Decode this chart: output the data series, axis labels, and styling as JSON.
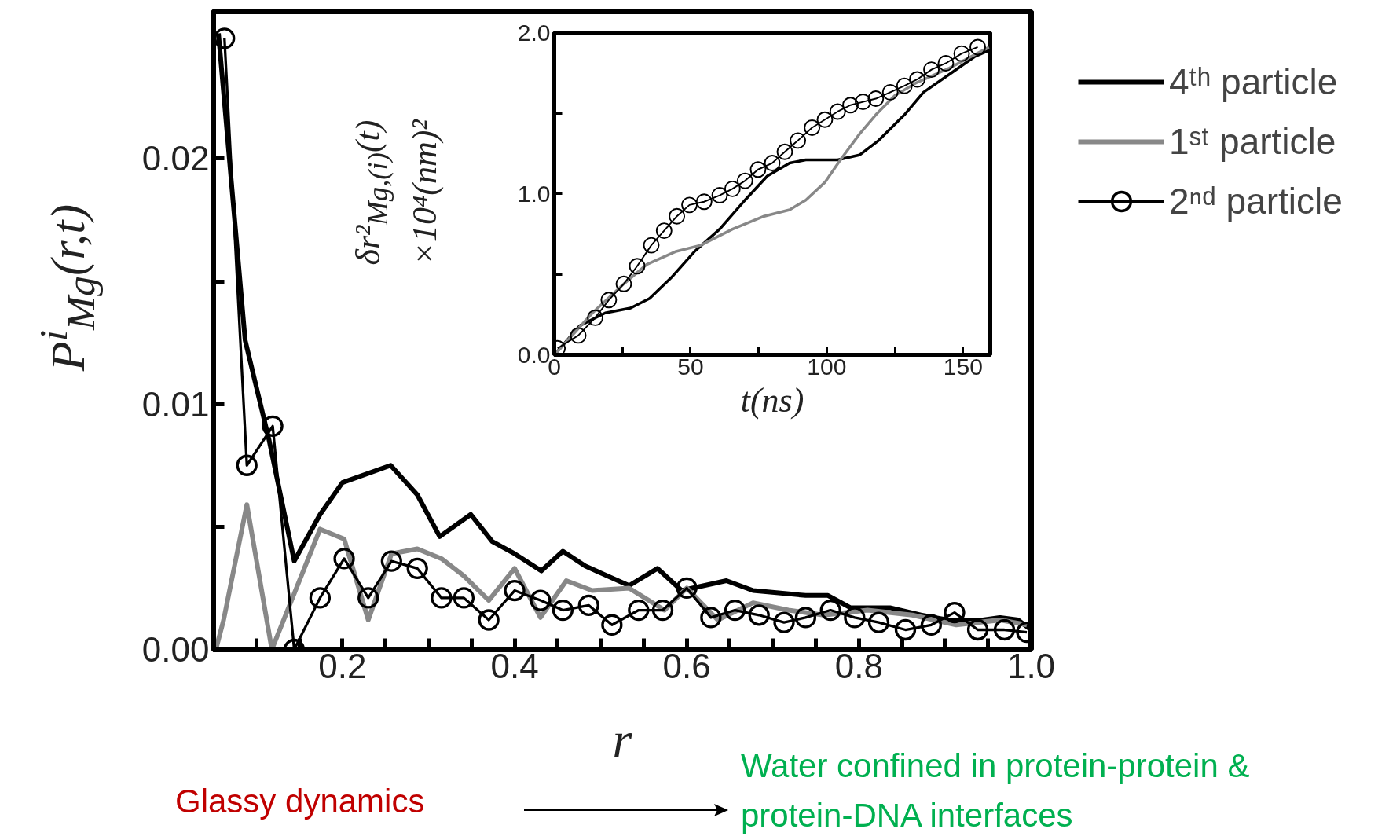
{
  "chart_data": [
    {
      "type": "line",
      "xlabel": "r",
      "ylabel": "P$^{i}$$_{Mg}$(r,t)",
      "xlim": [
        0.05,
        1.0
      ],
      "ylim": [
        0,
        0.026
      ],
      "xticks": [
        {
          "value": 0.1,
          "label": null
        },
        {
          "value": 0.15,
          "label": null
        },
        0.2,
        {
          "value": 0.25,
          "label": null
        },
        {
          "value": 0.3,
          "label": null
        },
        {
          "value": 0.35,
          "label": null
        },
        0.4,
        {
          "value": 0.45,
          "label": null
        },
        {
          "value": 0.5,
          "label": null
        },
        {
          "value": 0.55,
          "label": null
        },
        0.6,
        {
          "value": 0.65,
          "label": null
        },
        {
          "value": 0.7,
          "label": null
        },
        {
          "value": 0.75,
          "label": null
        },
        0.8,
        {
          "value": 0.85,
          "label": null
        },
        {
          "value": 0.9,
          "label": null
        },
        {
          "value": 0.95,
          "label": null
        },
        {
          "value": 1.0,
          "label": "1.0"
        }
      ],
      "yticks": [
        {
          "value": 0,
          "label": "0.00"
        },
        {
          "value": 0.005,
          "label": null
        },
        0.01,
        {
          "value": 0.015,
          "label": null
        },
        {
          "value": 0.02,
          "label": "0.02"
        }
      ],
      "grid": false,
      "legend": "right",
      "series": [
        {
          "name": "4ᵗʰ particle",
          "color": "#000000",
          "marker": "none",
          "x": [
            0.056,
            0.087,
            0.115,
            0.144,
            0.174,
            0.2,
            0.256,
            0.287,
            0.313,
            0.349,
            0.374,
            0.4,
            0.431,
            0.456,
            0.482,
            0.533,
            0.566,
            0.594,
            0.646,
            0.677,
            0.738,
            0.764,
            0.79,
            0.836,
            0.872,
            0.903,
            0.944,
            0.964,
            0.985,
            1.0
          ],
          "values": [
            0.0251,
            0.0126,
            0.0085,
            0.0036,
            0.0055,
            0.0068,
            0.0075,
            0.0063,
            0.0046,
            0.0055,
            0.0044,
            0.0039,
            0.0032,
            0.004,
            0.0034,
            0.0026,
            0.0033,
            0.0024,
            0.0028,
            0.0024,
            0.0022,
            0.0022,
            0.0017,
            0.0017,
            0.0014,
            0.0012,
            0.0012,
            0.0013,
            0.0012,
            0.0008
          ]
        },
        {
          "name": "1ˢᵗ particle",
          "color": "#888888",
          "marker": "none",
          "x": [
            0.053,
            0.062,
            0.089,
            0.118,
            0.174,
            0.202,
            0.23,
            0.257,
            0.287,
            0.315,
            0.341,
            0.37,
            0.4,
            0.43,
            0.46,
            0.49,
            0.533,
            0.574,
            0.6,
            0.636,
            0.677,
            0.718,
            0.759,
            0.81,
            0.862,
            0.913,
            0.964,
            0.995
          ],
          "values": [
            0.0,
            0.0012,
            0.0059,
            0.0,
            0.0049,
            0.0045,
            0.0012,
            0.0039,
            0.0041,
            0.0037,
            0.003,
            0.002,
            0.0033,
            0.0013,
            0.0028,
            0.0024,
            0.0025,
            0.0016,
            0.0025,
            0.0012,
            0.0019,
            0.0016,
            0.0014,
            0.0016,
            0.0014,
            0.001,
            0.0012,
            0.001
          ]
        },
        {
          "name": "2ⁿᵈ particle",
          "color": "#000000",
          "marker": "circle",
          "x": [
            0.063,
            0.089,
            0.119,
            0.144,
            0.174,
            0.202,
            0.23,
            0.257,
            0.287,
            0.315,
            0.341,
            0.37,
            0.4,
            0.43,
            0.456,
            0.486,
            0.513,
            0.544,
            0.572,
            0.6,
            0.628,
            0.656,
            0.684,
            0.713,
            0.738,
            0.767,
            0.795,
            0.823,
            0.854,
            0.884,
            0.911,
            0.938,
            0.969,
            0.995
          ],
          "values": [
            0.0249,
            0.0075,
            0.0091,
            0.0,
            0.0021,
            0.0037,
            0.0021,
            0.0036,
            0.0033,
            0.0021,
            0.0021,
            0.0012,
            0.0024,
            0.002,
            0.0016,
            0.0018,
            0.001,
            0.0016,
            0.0016,
            0.0025,
            0.0013,
            0.0016,
            0.0014,
            0.0011,
            0.0013,
            0.0016,
            0.0013,
            0.0011,
            0.0008,
            0.001,
            0.0015,
            0.0008,
            0.0008,
            0.0007
          ]
        }
      ],
      "annotations": [
        "Glassy dynamics",
        "Water confined in protein-protein & protein-DNA interfaces"
      ]
    },
    {
      "type": "line",
      "xlabel": "t(ns)",
      "ylabel": "δr²$_{Mg,(i)}$(t) ×10⁴(nm)²",
      "xlim": [
        0,
        160
      ],
      "ylim": [
        0,
        2.0
      ],
      "xticks": [
        0,
        {
          "value": 25,
          "label": null
        },
        50,
        {
          "value": 75,
          "label": null
        },
        100,
        {
          "value": 125,
          "label": null
        },
        150
      ],
      "yticks": [
        {
          "value": 0,
          "label": "0.0"
        },
        {
          "value": 0.5,
          "label": null
        },
        {
          "value": 1.0,
          "label": "1.0"
        },
        {
          "value": 1.5,
          "label": null
        },
        {
          "value": 2.0,
          "label": "2.0"
        }
      ],
      "grid": false,
      "series": [
        {
          "color": "#000000",
          "marker": "none",
          "x": [
            0.6,
            9.3,
            18.7,
            28,
            35,
            43,
            51.4,
            60.7,
            70,
            78.2,
            86.4,
            92.3,
            104,
            112,
            119,
            128.5,
            135.5,
            144.9,
            154.2,
            159.5
          ],
          "values": [
            0.01,
            0.18,
            0.26,
            0.29,
            0.35,
            0.48,
            0.64,
            0.78,
            0.96,
            1.11,
            1.19,
            1.21,
            1.21,
            1.24,
            1.33,
            1.49,
            1.63,
            1.74,
            1.85,
            1.89
          ]
        },
        {
          "color": "#888888",
          "marker": "none",
          "x": [
            0.6,
            14,
            25.5,
            33.9,
            44.4,
            53.7,
            65.4,
            77,
            86.4,
            92.3,
            99.3,
            105,
            112,
            118,
            125,
            133,
            145,
            159.5
          ],
          "values": [
            0.01,
            0.26,
            0.44,
            0.56,
            0.64,
            0.68,
            0.78,
            0.86,
            0.9,
            0.96,
            1.07,
            1.21,
            1.37,
            1.49,
            1.61,
            1.69,
            1.78,
            1.91
          ]
        },
        {
          "color": "#000000",
          "marker": "circle",
          "x": [
            1.2,
            8.8,
            15,
            20,
            25.5,
            30.4,
            35.6,
            40.3,
            45,
            49.6,
            55,
            60.7,
            65.4,
            70,
            74.8,
            80,
            84.6,
            89.4,
            94.6,
            99.3,
            104,
            108.7,
            113.3,
            118,
            123.3,
            128.5,
            133.2,
            138.4,
            143.7,
            149.5,
            155.4
          ],
          "values": [
            0.04,
            0.12,
            0.23,
            0.34,
            0.44,
            0.55,
            0.68,
            0.77,
            0.86,
            0.93,
            0.95,
            0.99,
            1.03,
            1.08,
            1.15,
            1.19,
            1.26,
            1.33,
            1.41,
            1.46,
            1.51,
            1.55,
            1.57,
            1.59,
            1.63,
            1.67,
            1.71,
            1.77,
            1.81,
            1.87,
            1.91
          ]
        }
      ]
    }
  ]
}
